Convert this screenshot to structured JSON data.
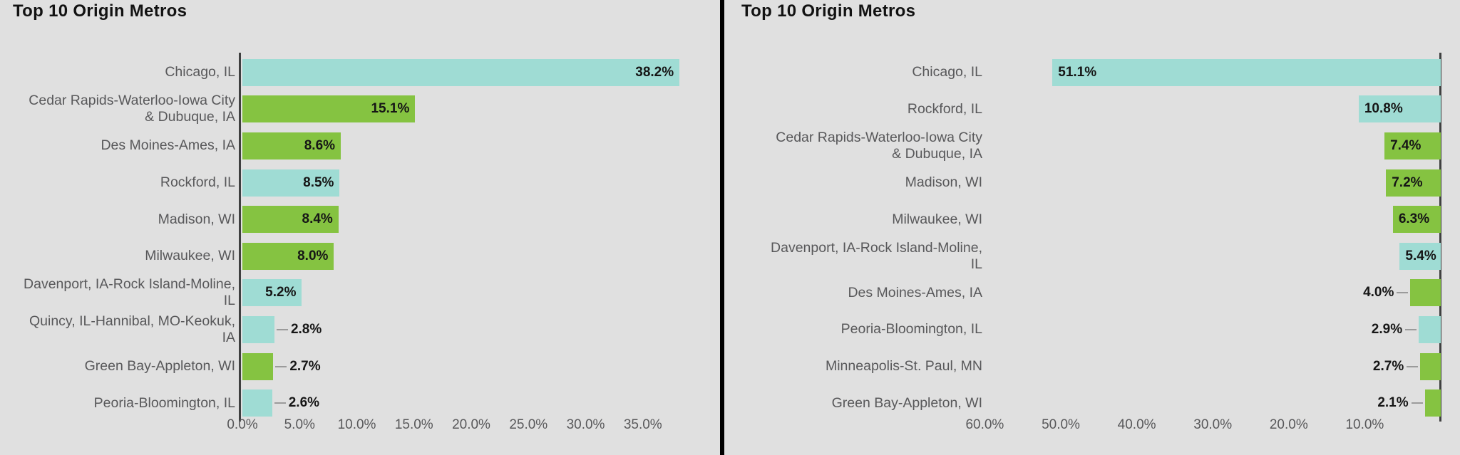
{
  "colors": {
    "background": "#e0e0e0",
    "teal": "#9fdcd4",
    "green": "#85c341",
    "axis_line": "#3f4040",
    "category_label": "#58585a",
    "value_label": "#161616",
    "leader_line": "#9b9b9b",
    "divider": "#000000",
    "title": "#121212"
  },
  "chart_data": [
    {
      "type": "bar",
      "title": "Top 10 Origin Metros",
      "orientation": "horizontal",
      "bars_grow": "right",
      "xlabel": "",
      "ylabel": "",
      "axis_ticks": [
        "0.0%",
        "5.0%",
        "10.0%",
        "15.0%",
        "20.0%",
        "25.0%",
        "30.0%",
        "35.0%"
      ],
      "axis_range_pct": [
        0,
        42
      ],
      "rows": [
        {
          "label": "Chicago, IL",
          "label_lines": [
            "Chicago, IL"
          ],
          "value": 38.2,
          "display": "38.2%",
          "color": "teal",
          "value_inside": true
        },
        {
          "label": "Cedar Rapids-Waterloo-Iowa City & Dubuque, IA",
          "label_lines": [
            "Cedar Rapids-Waterloo-Iowa City",
            "& Dubuque, IA"
          ],
          "value": 15.1,
          "display": "15.1%",
          "color": "green",
          "value_inside": true
        },
        {
          "label": "Des Moines-Ames, IA",
          "label_lines": [
            "Des Moines-Ames, IA"
          ],
          "value": 8.6,
          "display": "8.6%",
          "color": "green",
          "value_inside": true
        },
        {
          "label": "Rockford, IL",
          "label_lines": [
            "Rockford, IL"
          ],
          "value": 8.5,
          "display": "8.5%",
          "color": "teal",
          "value_inside": true
        },
        {
          "label": "Madison, WI",
          "label_lines": [
            "Madison, WI"
          ],
          "value": 8.4,
          "display": "8.4%",
          "color": "green",
          "value_inside": true
        },
        {
          "label": "Milwaukee, WI",
          "label_lines": [
            "Milwaukee, WI"
          ],
          "value": 8.0,
          "display": "8.0%",
          "color": "green",
          "value_inside": true
        },
        {
          "label": "Davenport, IA-Rock Island-Moline, IL",
          "label_lines": [
            "Davenport, IA-Rock Island-Moline,",
            "IL"
          ],
          "value": 5.2,
          "display": "5.2%",
          "color": "teal",
          "value_inside": true
        },
        {
          "label": "Quincy, IL-Hannibal, MO-Keokuk, IA",
          "label_lines": [
            "Quincy, IL-Hannibal, MO-Keokuk,",
            "IA"
          ],
          "value": 2.8,
          "display": "2.8%",
          "color": "teal",
          "value_inside": false
        },
        {
          "label": "Green Bay-Appleton, WI",
          "label_lines": [
            "Green Bay-Appleton, WI"
          ],
          "value": 2.7,
          "display": "2.7%",
          "color": "green",
          "value_inside": false
        },
        {
          "label": "Peoria-Bloomington, IL",
          "label_lines": [
            "Peoria-Bloomington, IL"
          ],
          "value": 2.6,
          "display": "2.6%",
          "color": "teal",
          "value_inside": false
        }
      ]
    },
    {
      "type": "bar",
      "title": "Top 10 Origin Metros",
      "orientation": "horizontal",
      "bars_grow": "left",
      "xlabel": "",
      "ylabel": "",
      "axis_ticks": [
        "60.0%",
        "50.0%",
        "40.0%",
        "30.0%",
        "20.0%",
        "10.0%"
      ],
      "axis_range_pct": [
        0,
        60
      ],
      "rows": [
        {
          "label": "Chicago, IL",
          "label_lines": [
            "Chicago, IL"
          ],
          "value": 51.1,
          "display": "51.1%",
          "color": "teal",
          "value_inside": true
        },
        {
          "label": "Rockford, IL",
          "label_lines": [
            "Rockford, IL"
          ],
          "value": 10.8,
          "display": "10.8%",
          "color": "teal",
          "value_inside": true
        },
        {
          "label": "Cedar Rapids-Waterloo-Iowa City & Dubuque, IA",
          "label_lines": [
            "Cedar Rapids-Waterloo-Iowa City",
            "& Dubuque, IA"
          ],
          "value": 7.4,
          "display": "7.4%",
          "color": "green",
          "value_inside": true
        },
        {
          "label": "Madison, WI",
          "label_lines": [
            "Madison, WI"
          ],
          "value": 7.2,
          "display": "7.2%",
          "color": "green",
          "value_inside": true
        },
        {
          "label": "Milwaukee, WI",
          "label_lines": [
            "Milwaukee, WI"
          ],
          "value": 6.3,
          "display": "6.3%",
          "color": "green",
          "value_inside": true
        },
        {
          "label": "Davenport, IA-Rock Island-Moline, IL",
          "label_lines": [
            "Davenport, IA-Rock Island-Moline,",
            "IL"
          ],
          "value": 5.4,
          "display": "5.4%",
          "color": "teal",
          "value_inside": true
        },
        {
          "label": "Des Moines-Ames, IA",
          "label_lines": [
            "Des Moines-Ames, IA"
          ],
          "value": 4.0,
          "display": "4.0%",
          "color": "green",
          "value_inside": false
        },
        {
          "label": "Peoria-Bloomington, IL",
          "label_lines": [
            "Peoria-Bloomington, IL"
          ],
          "value": 2.9,
          "display": "2.9%",
          "color": "teal",
          "value_inside": false
        },
        {
          "label": "Minneapolis-St. Paul, MN",
          "label_lines": [
            "Minneapolis-St. Paul, MN"
          ],
          "value": 2.7,
          "display": "2.7%",
          "color": "green",
          "value_inside": false
        },
        {
          "label": "Green Bay-Appleton, WI",
          "label_lines": [
            "Green Bay-Appleton, WI"
          ],
          "value": 2.1,
          "display": "2.1%",
          "color": "green",
          "value_inside": false
        }
      ]
    }
  ]
}
